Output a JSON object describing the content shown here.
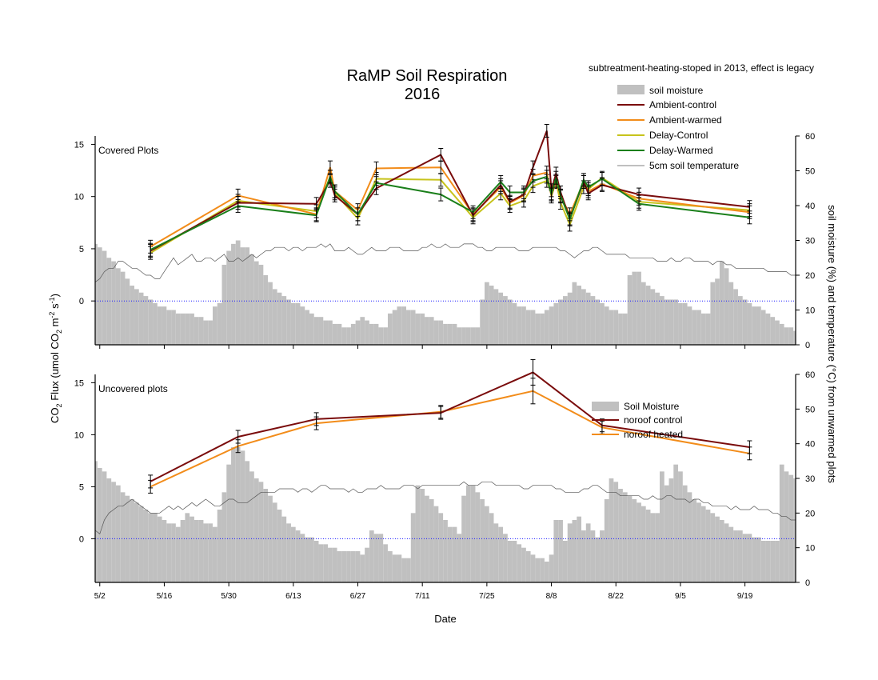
{
  "title": {
    "line1": "RaMP Soil Respiration",
    "line2": "2016"
  },
  "note": "subtreatment-heating-stoped in 2013, effect is legacy",
  "xlabel": "Date",
  "ylabel_left": {
    "pre": "CO",
    "sub1": "2",
    "mid": " Flux (umol CO",
    "sub2": "2",
    "m": " m",
    "sup1": "-2",
    "s": " s",
    "sup2": "-1",
    "post": ")"
  },
  "ylabel_right": "soil moisture (%) and temperature (°C) from unwarmed plots",
  "colors": {
    "moisture": "#c0c0c0",
    "ambient_control": "#7a0c0c",
    "ambient_warmed": "#f28c1a",
    "delay_control": "#c7c31c",
    "delay_warmed": "#1a7f1a",
    "temperature": "#555555",
    "zero_line": "#1a1aff"
  },
  "x_ticks": [
    {
      "day": 2,
      "label": "5/2"
    },
    {
      "day": 16,
      "label": "5/16"
    },
    {
      "day": 30,
      "label": "5/30"
    },
    {
      "day": 44,
      "label": "6/13"
    },
    {
      "day": 58,
      "label": "6/27"
    },
    {
      "day": 72,
      "label": "7/11"
    },
    {
      "day": 86,
      "label": "7/25"
    },
    {
      "day": 100,
      "label": "8/8"
    },
    {
      "day": 114,
      "label": "8/22"
    },
    {
      "day": 128,
      "label": "9/5"
    },
    {
      "day": 142,
      "label": "9/19"
    }
  ],
  "chart_data": [
    {
      "type": "line",
      "panel_label": "Covered Plots",
      "x_unit": "day of year offset from 5/1 (5/2 = 2)",
      "xlim": [
        1,
        153
      ],
      "ylim_left": [
        -4.2,
        15.8
      ],
      "yticks_left": [
        0,
        5,
        10,
        15
      ],
      "ylim_right": [
        0,
        60
      ],
      "yticks_right": [
        0,
        10,
        20,
        30,
        40,
        50,
        60
      ],
      "legend": [
        "soil moisture",
        "Ambient-control",
        "Ambient-warmed",
        "Delay-Control",
        "Delay-Warmed",
        "5cm soil temperature"
      ],
      "moisture_pct": [
        29,
        28,
        27,
        25,
        24,
        22,
        21,
        19,
        17,
        16,
        15,
        14,
        13,
        12,
        11,
        11,
        10,
        10,
        9,
        9,
        9,
        9,
        8,
        8,
        7,
        7,
        11,
        12,
        23,
        27,
        29,
        30,
        28,
        28,
        26,
        24,
        23,
        20,
        18,
        16,
        15,
        14,
        13,
        12,
        12,
        11,
        10,
        9,
        8,
        8,
        7,
        7,
        6,
        6,
        5,
        5,
        6,
        7,
        8,
        7,
        6,
        6,
        5,
        5,
        9,
        10,
        11,
        11,
        10,
        10,
        9,
        9,
        8,
        8,
        7,
        7,
        6,
        6,
        6,
        5,
        5,
        5,
        5,
        5,
        13,
        18,
        17,
        16,
        15,
        14,
        13,
        12,
        11,
        11,
        10,
        10,
        9,
        9,
        10,
        11,
        12,
        13,
        14,
        15,
        18,
        17,
        16,
        15,
        14,
        13,
        12,
        11,
        10,
        10,
        9,
        9,
        20,
        21,
        21,
        18,
        17,
        16,
        15,
        14,
        13,
        13,
        13,
        12,
        12,
        11,
        10,
        10,
        9,
        9,
        18,
        19,
        24,
        22,
        18,
        16,
        14,
        13,
        12,
        11,
        11,
        10,
        9,
        8,
        7,
        6,
        5,
        5,
        4
      ],
      "temperature_c": [
        18,
        19,
        21,
        22,
        22,
        24,
        24,
        23,
        22,
        22,
        21,
        20,
        20,
        19,
        19,
        21,
        23,
        25,
        23,
        24,
        25,
        26,
        24,
        24,
        25,
        25,
        24,
        25,
        26,
        24,
        24,
        25,
        24,
        25,
        26,
        25,
        26,
        27,
        27,
        28,
        28,
        28,
        27,
        28,
        28,
        27,
        28,
        28,
        28,
        29,
        28,
        29,
        27,
        27,
        27,
        28,
        27,
        26,
        26,
        27,
        28,
        27,
        27,
        27,
        28,
        28,
        28,
        27,
        27,
        27,
        27,
        28,
        28,
        29,
        28,
        28,
        29,
        28,
        28,
        28,
        29,
        29,
        29,
        28,
        28,
        27,
        27,
        28,
        28,
        28,
        28,
        28,
        27,
        27,
        27,
        28,
        28,
        28,
        28,
        28,
        28,
        27,
        27,
        26,
        25,
        26,
        27,
        27,
        28,
        28,
        27,
        26,
        26,
        26,
        26,
        26,
        25,
        25,
        25,
        25,
        25,
        25,
        24,
        24,
        24,
        25,
        24,
        24,
        25,
        25,
        24,
        24,
        24,
        24,
        23,
        24,
        24,
        23,
        23,
        22,
        22,
        22,
        22,
        22,
        22,
        22,
        21,
        21,
        21,
        21,
        21,
        20,
        20
      ],
      "series": [
        {
          "name": "Ambient-control",
          "x": [
            13,
            32,
            49,
            52,
            53,
            58,
            62,
            76,
            83,
            89,
            91,
            94,
            96,
            99,
            100,
            101,
            102,
            104,
            107,
            108,
            111,
            119,
            143
          ],
          "y": [
            4.8,
            9.4,
            9.3,
            11.5,
            10.1,
            8.3,
            10.8,
            14,
            8.2,
            11.1,
            9.5,
            10.2,
            12.8,
            16.3,
            10.6,
            12.2,
            10.4,
            7.9,
            11.4,
            10.3,
            11.1,
            10.2,
            9
          ]
        },
        {
          "name": "Ambient-warmed",
          "x": [
            13,
            32,
            49,
            52,
            53,
            58,
            62,
            76,
            83,
            89,
            91,
            94,
            96,
            99,
            100,
            101,
            102,
            104,
            107,
            108,
            111,
            119,
            143
          ],
          "y": [
            5.2,
            10.1,
            8.3,
            12.8,
            10.5,
            8.7,
            12.7,
            12.8,
            8.3,
            10.9,
            9.4,
            10.1,
            12,
            12.3,
            10,
            11.5,
            10,
            8.3,
            11.4,
            10.5,
            11.2,
            9.8,
            8.5
          ]
        },
        {
          "name": "Delay-Control",
          "x": [
            13,
            32,
            49,
            52,
            53,
            58,
            62,
            76,
            83,
            89,
            91,
            94,
            96,
            99,
            100,
            101,
            102,
            104,
            107,
            108,
            111,
            119,
            143
          ],
          "y": [
            4.6,
            9.6,
            8.6,
            11.9,
            10.3,
            7.9,
            11.7,
            11.6,
            8,
            10.3,
            9.1,
            9.6,
            11,
            11.5,
            10.3,
            11.4,
            9.4,
            7.3,
            10.9,
            10.7,
            11.8,
            9.5,
            8.7
          ]
        },
        {
          "name": "Delay-Warmed",
          "x": [
            13,
            32,
            49,
            52,
            53,
            58,
            62,
            76,
            83,
            89,
            91,
            94,
            96,
            99,
            100,
            101,
            102,
            104,
            107,
            108,
            111,
            119,
            143
          ],
          "y": [
            4.9,
            9.1,
            8.2,
            11.9,
            10.5,
            8.3,
            11.3,
            10.2,
            8.5,
            11.4,
            10.4,
            10.4,
            11.5,
            11.9,
            10.2,
            11.8,
            10.1,
            7.8,
            11.6,
            10.9,
            11.7,
            9.3,
            8
          ]
        }
      ]
    },
    {
      "type": "line",
      "panel_label": "Uncovered plots",
      "x_unit": "day of year offset from 5/1 (5/2 = 2)",
      "xlim": [
        1,
        153
      ],
      "ylim_left": [
        -4.2,
        15.8
      ],
      "yticks_left": [
        0,
        5,
        10,
        15
      ],
      "ylim_right": [
        0,
        60
      ],
      "yticks_right": [
        0,
        10,
        20,
        30,
        40,
        50,
        60
      ],
      "legend": [
        "Soil Moisture",
        "noroof control",
        "noroof heated"
      ],
      "moisture_pct": [
        35,
        33,
        32,
        30,
        29,
        28,
        26,
        25,
        24,
        23,
        22,
        21,
        20,
        20,
        19,
        18,
        17,
        17,
        16,
        18,
        20,
        19,
        18,
        18,
        17,
        17,
        16,
        21,
        26,
        34,
        39,
        39,
        38,
        35,
        32,
        30,
        29,
        27,
        25,
        23,
        21,
        19,
        17,
        16,
        15,
        14,
        13,
        13,
        12,
        11,
        11,
        10,
        10,
        9,
        9,
        9,
        9,
        9,
        8,
        10,
        15,
        14,
        14,
        11,
        9,
        8,
        8,
        7,
        7,
        20,
        28,
        27,
        25,
        24,
        22,
        20,
        18,
        16,
        16,
        14,
        25,
        28,
        28,
        26,
        24,
        22,
        20,
        17,
        16,
        14,
        12,
        12,
        11,
        10,
        9,
        8,
        7,
        7,
        6,
        8,
        18,
        18,
        12,
        17,
        18,
        19,
        15,
        17,
        15,
        13,
        15,
        24,
        30,
        29,
        27,
        26,
        25,
        24,
        23,
        22,
        21,
        20,
        20,
        32,
        28,
        30,
        34,
        32,
        28,
        26,
        24,
        23,
        22,
        21,
        20,
        19,
        18,
        17,
        16,
        15,
        15,
        14,
        14,
        13,
        13,
        12,
        12,
        12,
        12,
        34,
        32,
        31,
        30
      ],
      "temperature_c": [
        15,
        14,
        18,
        20,
        21,
        22,
        22,
        23,
        24,
        23,
        22,
        21,
        20,
        20,
        20,
        21,
        22,
        21,
        22,
        21,
        22,
        23,
        22,
        23,
        24,
        23,
        22,
        22,
        23,
        24,
        24,
        23,
        23,
        23,
        24,
        25,
        26,
        26,
        26,
        26,
        27,
        27,
        27,
        27,
        26,
        27,
        27,
        26,
        27,
        28,
        28,
        27,
        27,
        27,
        27,
        26,
        27,
        26,
        26,
        27,
        27,
        27,
        28,
        27,
        27,
        27,
        27,
        28,
        28,
        28,
        27,
        28,
        28,
        28,
        28,
        28,
        28,
        28,
        28,
        28,
        29,
        28,
        28,
        28,
        29,
        29,
        29,
        28,
        28,
        28,
        28,
        28,
        28,
        27,
        27,
        28,
        28,
        28,
        28,
        28,
        27,
        27,
        26,
        26,
        26,
        26,
        27,
        27,
        28,
        28,
        27,
        26,
        26,
        26,
        25,
        25,
        25,
        25,
        25,
        24,
        24,
        25,
        24,
        24,
        25,
        25,
        24,
        24,
        24,
        23,
        24,
        24,
        23,
        23,
        22,
        22,
        22,
        22,
        21,
        22,
        21,
        21,
        21,
        22,
        21,
        21,
        21,
        20,
        20,
        19,
        19,
        18,
        18
      ],
      "series": [
        {
          "name": "noroof control",
          "x": [
            13,
            32,
            49,
            76,
            96,
            111,
            143
          ],
          "y": [
            5.5,
            9.8,
            11.5,
            12.1,
            16,
            10.9,
            8.8
          ]
        },
        {
          "name": "noroof heated",
          "x": [
            13,
            32,
            49,
            76,
            96,
            111,
            143
          ],
          "y": [
            5,
            8.9,
            11.1,
            12.2,
            14.2,
            10.7,
            8.2
          ]
        }
      ]
    }
  ]
}
